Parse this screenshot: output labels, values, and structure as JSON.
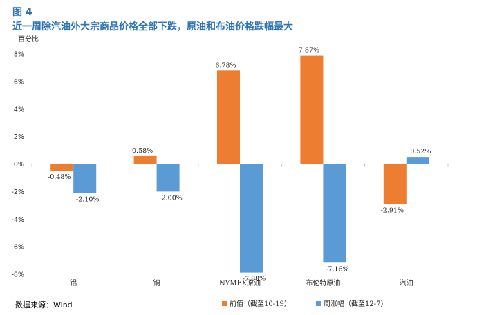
{
  "figure_number": "图 4",
  "title": "近一周除汽油外大宗商品价格全部下跌，原油和布油价格跌幅最大",
  "source": "数据来源：Wind",
  "chart_data": {
    "type": "bar",
    "ylabel": "百分比",
    "categories": [
      "铝",
      "铜",
      "NYMEX原油",
      "布伦特原油",
      "汽油"
    ],
    "series": [
      {
        "name": "前值（截至10-19）",
        "values": [
          -0.48,
          0.58,
          6.78,
          7.87,
          -2.91
        ],
        "labels": [
          "-0.48%",
          "0.58%",
          "6.78%",
          "7.87%",
          "-2.91%"
        ],
        "color": "#ed7d31"
      },
      {
        "name": "周涨幅（截至12-7）",
        "values": [
          -2.1,
          -2.0,
          -7.88,
          -7.16,
          0.52
        ],
        "labels": [
          "-2.10%",
          "-2.00%",
          "-7.88%",
          "-7.16%",
          "0.52%"
        ],
        "color": "#5b9bd5"
      }
    ],
    "ylim": [
      -8,
      8
    ],
    "yticks": [
      8,
      6,
      4,
      2,
      0,
      -2,
      -4,
      -6,
      -8
    ],
    "ytick_labels": [
      "8%",
      "6%",
      "4%",
      "2%",
      "0%",
      "-2%",
      "-4%",
      "-6%",
      "-8%"
    ],
    "grid": false,
    "legend_position": "bottom-right"
  }
}
